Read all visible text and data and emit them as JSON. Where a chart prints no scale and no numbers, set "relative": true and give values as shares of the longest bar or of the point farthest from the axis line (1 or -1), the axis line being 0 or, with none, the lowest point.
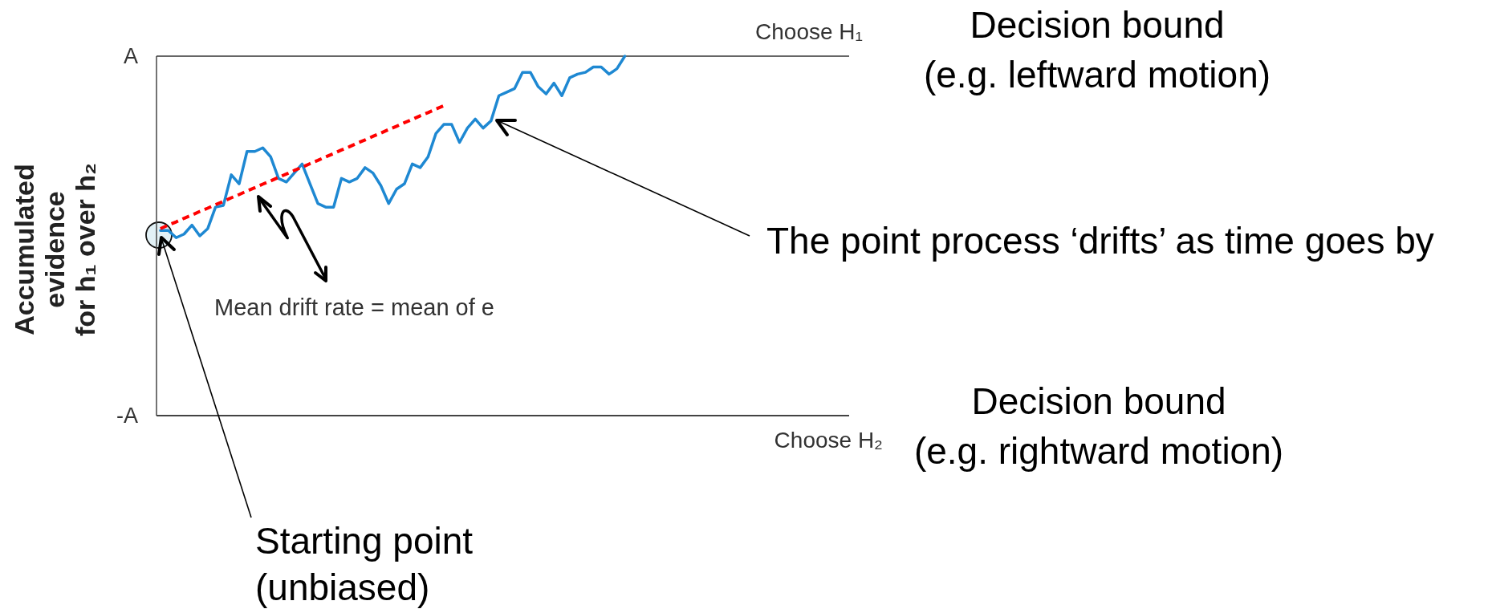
{
  "chart_data": {
    "type": "line",
    "relative": true,
    "ylabel": "Accumulated\nevidence\nfor h₁ over h₂",
    "categories": [
      null,
      null,
      null,
      null,
      null,
      null,
      null,
      null,
      null,
      null,
      null,
      null,
      null,
      null,
      null,
      null,
      null,
      null,
      null,
      null,
      null,
      null,
      null,
      null,
      null,
      null,
      null,
      null,
      null,
      null,
      null,
      null,
      null,
      null,
      null,
      null,
      null,
      null,
      null,
      null,
      null,
      null,
      null,
      null,
      null,
      null,
      null,
      null,
      null,
      null,
      null,
      null,
      null,
      null,
      null,
      null,
      null,
      null,
      null,
      null,
      null,
      null,
      null,
      null,
      null,
      null,
      null,
      null,
      null,
      null,
      null,
      null,
      null,
      null,
      null,
      null,
      null,
      null,
      null,
      null,
      null,
      null,
      null,
      null,
      null,
      null,
      null,
      null
    ],
    "series": [
      {
        "color": "#1e88d2",
        "line_style": "solid",
        "values": [
          0.515,
          0.515,
          0.495,
          0.505,
          0.53,
          0.5,
          0.52,
          0.58,
          0.585,
          0.67,
          0.645,
          0.735,
          0.735,
          0.745,
          0.72,
          0.66,
          0.65,
          0.675,
          0.7,
          0.645,
          0.59,
          0.58,
          0.58,
          0.66,
          0.65,
          0.66,
          0.69,
          0.675,
          0.64,
          0.59,
          0.63,
          0.645,
          0.7,
          0.69,
          0.72,
          0.785,
          0.81,
          0.81,
          0.76,
          0.8,
          0.825,
          0.8,
          0.82,
          0.89,
          0.9,
          0.91,
          0.955,
          0.955,
          0.915,
          0.895,
          0.925,
          0.89,
          0.94,
          0.95,
          0.955,
          0.97,
          0.97,
          0.95,
          0.965,
          1.0,
          null,
          null,
          null,
          null,
          null,
          null,
          null,
          null,
          null,
          null,
          null,
          null,
          null,
          null,
          null,
          null,
          null,
          null,
          null,
          null,
          null,
          null,
          null,
          null,
          null,
          null,
          null,
          null
        ]
      },
      {
        "color": "#ff0000",
        "line_style": "dashed",
        "values": [
          0.52,
          0.53,
          0.539,
          0.549,
          0.558,
          0.568,
          0.577,
          0.587,
          0.596,
          0.606,
          0.615,
          0.625,
          0.634,
          0.644,
          0.653,
          0.663,
          0.672,
          0.682,
          0.691,
          0.701,
          0.71,
          0.72,
          0.729,
          0.739,
          0.748,
          0.758,
          0.767,
          0.777,
          0.786,
          0.796,
          0.805,
          0.815,
          0.824,
          0.834,
          0.843,
          0.853,
          0.862,
          null,
          null,
          null,
          null,
          null,
          null,
          null,
          null,
          null,
          null,
          null,
          null,
          null,
          null,
          null,
          null,
          null,
          null,
          null,
          null,
          null,
          null,
          null,
          null,
          null,
          null,
          null,
          null,
          null,
          null,
          null,
          null,
          null,
          null,
          null,
          null,
          null,
          null,
          null,
          null,
          null,
          null,
          null,
          null,
          null,
          null,
          null,
          null,
          null,
          null,
          null
        ]
      }
    ],
    "ref_lines": [
      {
        "axis": "y",
        "value": 1,
        "label": "Choose H₁"
      },
      {
        "axis": "y",
        "value": 0,
        "label": "Choose H₂"
      }
    ],
    "annotations": [
      "A",
      "-A",
      "Decision bound\n(e.g. leftward motion)",
      "The point process ‘drifts’ as time goes by",
      "Mean drift rate = mean of e",
      "Decision bound\n(e.g. rightward motion)",
      "Starting point\n(unbiased)"
    ]
  }
}
